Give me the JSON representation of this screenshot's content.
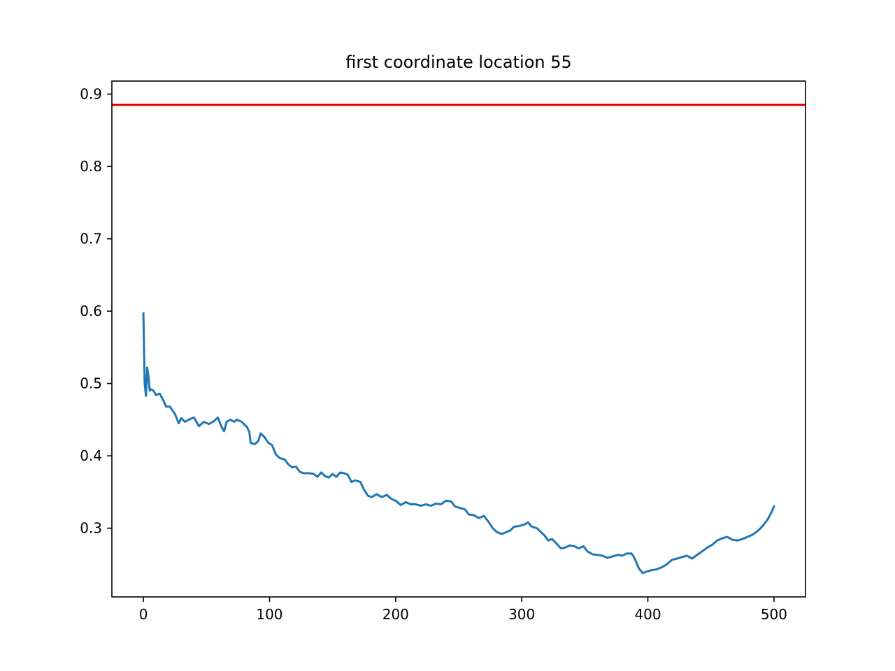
{
  "chart_data": {
    "type": "line",
    "title": "first coordinate location 55",
    "xlabel": "",
    "ylabel": "",
    "xlim": [
      -25,
      525
    ],
    "ylim": [
      0.205,
      0.918
    ],
    "xticks": [
      0,
      100,
      200,
      300,
      400,
      500
    ],
    "xtick_labels": [
      "0",
      "100",
      "200",
      "300",
      "400",
      "500"
    ],
    "yticks": [
      0.3,
      0.4,
      0.5,
      0.6,
      0.7,
      0.8,
      0.9
    ],
    "ytick_labels": [
      "0.3",
      "0.4",
      "0.5",
      "0.6",
      "0.7",
      "0.8",
      "0.9"
    ],
    "grid": false,
    "legend": "none",
    "reference_line": {
      "y": 0.885,
      "color": "#e60000"
    },
    "series": [
      {
        "color": "#1f77b4",
        "points": [
          [
            0,
            0.597
          ],
          [
            1,
            0.5
          ],
          [
            2,
            0.483
          ],
          [
            3,
            0.522
          ],
          [
            4,
            0.51
          ],
          [
            5,
            0.49
          ],
          [
            6,
            0.492
          ],
          [
            8,
            0.49
          ],
          [
            10,
            0.484
          ],
          [
            13,
            0.486
          ],
          [
            16,
            0.476
          ],
          [
            18,
            0.468
          ],
          [
            21,
            0.468
          ],
          [
            23,
            0.463
          ],
          [
            25,
            0.458
          ],
          [
            28,
            0.445
          ],
          [
            30,
            0.452
          ],
          [
            33,
            0.447
          ],
          [
            36,
            0.45
          ],
          [
            40,
            0.453
          ],
          [
            44,
            0.441
          ],
          [
            48,
            0.447
          ],
          [
            52,
            0.444
          ],
          [
            56,
            0.448
          ],
          [
            59,
            0.453
          ],
          [
            62,
            0.44
          ],
          [
            64,
            0.434
          ],
          [
            66,
            0.447
          ],
          [
            69,
            0.45
          ],
          [
            72,
            0.447
          ],
          [
            74,
            0.45
          ],
          [
            78,
            0.447
          ],
          [
            82,
            0.44
          ],
          [
            84,
            0.433
          ],
          [
            85,
            0.418
          ],
          [
            88,
            0.416
          ],
          [
            91,
            0.42
          ],
          [
            93,
            0.431
          ],
          [
            96,
            0.426
          ],
          [
            99,
            0.418
          ],
          [
            102,
            0.415
          ],
          [
            105,
            0.402
          ],
          [
            108,
            0.397
          ],
          [
            112,
            0.395
          ],
          [
            115,
            0.388
          ],
          [
            118,
            0.384
          ],
          [
            121,
            0.385
          ],
          [
            124,
            0.378
          ],
          [
            127,
            0.376
          ],
          [
            131,
            0.376
          ],
          [
            135,
            0.375
          ],
          [
            138,
            0.371
          ],
          [
            141,
            0.377
          ],
          [
            144,
            0.372
          ],
          [
            147,
            0.37
          ],
          [
            150,
            0.375
          ],
          [
            153,
            0.371
          ],
          [
            156,
            0.377
          ],
          [
            159,
            0.376
          ],
          [
            162,
            0.374
          ],
          [
            165,
            0.364
          ],
          [
            168,
            0.366
          ],
          [
            172,
            0.364
          ],
          [
            175,
            0.353
          ],
          [
            178,
            0.345
          ],
          [
            181,
            0.343
          ],
          [
            185,
            0.347
          ],
          [
            189,
            0.343
          ],
          [
            193,
            0.346
          ],
          [
            197,
            0.34
          ],
          [
            200,
            0.338
          ],
          [
            204,
            0.332
          ],
          [
            208,
            0.336
          ],
          [
            212,
            0.333
          ],
          [
            216,
            0.333
          ],
          [
            220,
            0.331
          ],
          [
            224,
            0.333
          ],
          [
            228,
            0.331
          ],
          [
            232,
            0.334
          ],
          [
            236,
            0.333
          ],
          [
            240,
            0.338
          ],
          [
            244,
            0.337
          ],
          [
            247,
            0.33
          ],
          [
            251,
            0.328
          ],
          [
            255,
            0.326
          ],
          [
            258,
            0.319
          ],
          [
            262,
            0.318
          ],
          [
            266,
            0.314
          ],
          [
            270,
            0.317
          ],
          [
            274,
            0.308
          ],
          [
            277,
            0.3
          ],
          [
            280,
            0.295
          ],
          [
            284,
            0.292
          ],
          [
            287,
            0.294
          ],
          [
            291,
            0.297
          ],
          [
            294,
            0.302
          ],
          [
            298,
            0.303
          ],
          [
            302,
            0.305
          ],
          [
            305,
            0.308
          ],
          [
            308,
            0.302
          ],
          [
            312,
            0.3
          ],
          [
            315,
            0.295
          ],
          [
            318,
            0.29
          ],
          [
            321,
            0.283
          ],
          [
            324,
            0.285
          ],
          [
            328,
            0.278
          ],
          [
            331,
            0.272
          ],
          [
            334,
            0.273
          ],
          [
            338,
            0.276
          ],
          [
            342,
            0.275
          ],
          [
            345,
            0.272
          ],
          [
            349,
            0.275
          ],
          [
            352,
            0.268
          ],
          [
            356,
            0.264
          ],
          [
            360,
            0.263
          ],
          [
            364,
            0.262
          ],
          [
            368,
            0.259
          ],
          [
            372,
            0.261
          ],
          [
            376,
            0.263
          ],
          [
            380,
            0.262
          ],
          [
            383,
            0.265
          ],
          [
            387,
            0.265
          ],
          [
            389,
            0.26
          ],
          [
            391,
            0.252
          ],
          [
            393,
            0.244
          ],
          [
            396,
            0.238
          ],
          [
            399,
            0.24
          ],
          [
            403,
            0.242
          ],
          [
            407,
            0.243
          ],
          [
            411,
            0.246
          ],
          [
            415,
            0.25
          ],
          [
            419,
            0.256
          ],
          [
            423,
            0.258
          ],
          [
            427,
            0.26
          ],
          [
            431,
            0.262
          ],
          [
            435,
            0.258
          ],
          [
            439,
            0.263
          ],
          [
            443,
            0.268
          ],
          [
            447,
            0.273
          ],
          [
            451,
            0.277
          ],
          [
            455,
            0.283
          ],
          [
            459,
            0.286
          ],
          [
            463,
            0.288
          ],
          [
            467,
            0.284
          ],
          [
            471,
            0.283
          ],
          [
            475,
            0.285
          ],
          [
            479,
            0.288
          ],
          [
            483,
            0.291
          ],
          [
            487,
            0.296
          ],
          [
            491,
            0.303
          ],
          [
            495,
            0.312
          ],
          [
            498,
            0.322
          ],
          [
            500,
            0.33
          ]
        ]
      }
    ]
  }
}
